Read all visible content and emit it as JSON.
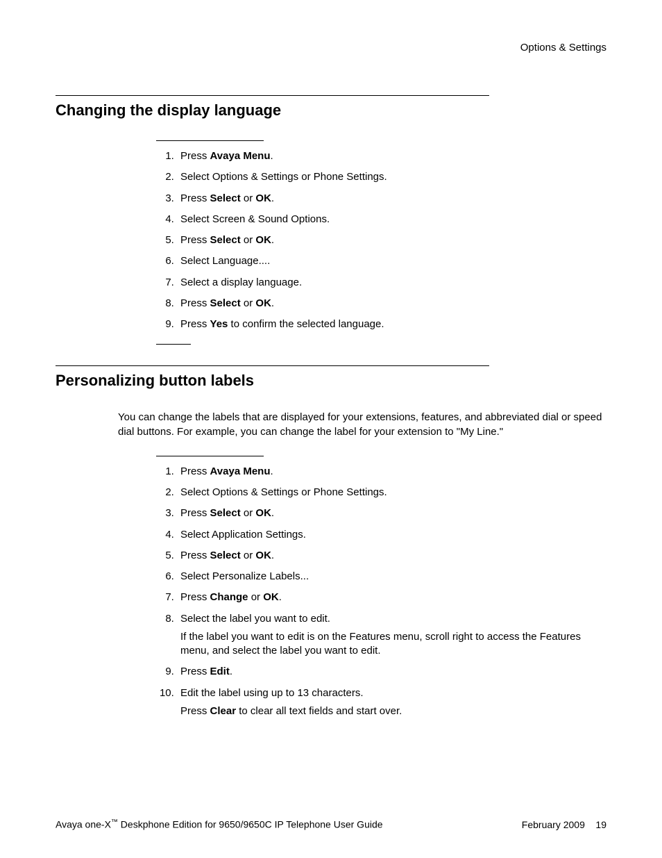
{
  "header": {
    "right_text": "Options & Settings"
  },
  "section1": {
    "title": "Changing the display language",
    "steps": [
      {
        "parts": [
          {
            "t": "Press "
          },
          {
            "t": "Avaya Menu",
            "b": true
          },
          {
            "t": "."
          }
        ]
      },
      {
        "parts": [
          {
            "t": "Select Options & Settings or Phone Settings."
          }
        ]
      },
      {
        "parts": [
          {
            "t": "Press "
          },
          {
            "t": "Select",
            "b": true
          },
          {
            "t": " or "
          },
          {
            "t": "OK",
            "b": true
          },
          {
            "t": "."
          }
        ]
      },
      {
        "parts": [
          {
            "t": "Select Screen & Sound Options."
          }
        ]
      },
      {
        "parts": [
          {
            "t": "Press "
          },
          {
            "t": "Select",
            "b": true
          },
          {
            "t": " or "
          },
          {
            "t": "OK",
            "b": true
          },
          {
            "t": "."
          }
        ]
      },
      {
        "parts": [
          {
            "t": "Select Language...."
          }
        ]
      },
      {
        "parts": [
          {
            "t": "Select a display language."
          }
        ]
      },
      {
        "parts": [
          {
            "t": "Press "
          },
          {
            "t": "Select",
            "b": true
          },
          {
            "t": " or "
          },
          {
            "t": "OK",
            "b": true
          },
          {
            "t": "."
          }
        ]
      },
      {
        "parts": [
          {
            "t": "Press "
          },
          {
            "t": "Yes",
            "b": true
          },
          {
            "t": " to confirm the selected language."
          }
        ]
      }
    ]
  },
  "section2": {
    "title": "Personalizing button labels",
    "intro": "You can change the labels that are displayed for your extensions, features, and abbreviated dial or speed dial buttons. For example, you can change the label for your extension to \"My Line.\"",
    "steps": [
      {
        "parts": [
          {
            "t": "Press "
          },
          {
            "t": "Avaya Menu",
            "b": true
          },
          {
            "t": "."
          }
        ]
      },
      {
        "parts": [
          {
            "t": "Select Options & Settings or Phone Settings."
          }
        ]
      },
      {
        "parts": [
          {
            "t": "Press "
          },
          {
            "t": "Select",
            "b": true
          },
          {
            "t": " or "
          },
          {
            "t": "OK",
            "b": true
          },
          {
            "t": "."
          }
        ]
      },
      {
        "parts": [
          {
            "t": "Select Application Settings."
          }
        ]
      },
      {
        "parts": [
          {
            "t": "Press "
          },
          {
            "t": "Select",
            "b": true
          },
          {
            "t": " or "
          },
          {
            "t": "OK",
            "b": true
          },
          {
            "t": "."
          }
        ]
      },
      {
        "parts": [
          {
            "t": "Select Personalize Labels..."
          }
        ]
      },
      {
        "parts": [
          {
            "t": "Press "
          },
          {
            "t": "Change",
            "b": true
          },
          {
            "t": " or "
          },
          {
            "t": "OK",
            "b": true
          },
          {
            "t": "."
          }
        ]
      },
      {
        "parts": [
          {
            "t": "Select the label you want to edit."
          }
        ],
        "sub": [
          {
            "t": "If the label you want to edit is on the Features menu, scroll right to access the Features menu, and select the label you want to edit."
          }
        ]
      },
      {
        "parts": [
          {
            "t": "Press "
          },
          {
            "t": "Edit",
            "b": true
          },
          {
            "t": "."
          }
        ]
      },
      {
        "parts": [
          {
            "t": "Edit the label using up to 13 characters."
          }
        ],
        "sub": [
          {
            "t": "Press "
          },
          {
            "t": "Clear",
            "b": true
          },
          {
            "t": " to clear all text fields and start over."
          }
        ]
      }
    ]
  },
  "footer": {
    "left_prefix": "Avaya one-X",
    "left_tm": "™",
    "left_suffix": " Deskphone Edition for 9650/9650C IP Telephone User Guide",
    "right_date": "February 2009",
    "page_num": "19"
  }
}
